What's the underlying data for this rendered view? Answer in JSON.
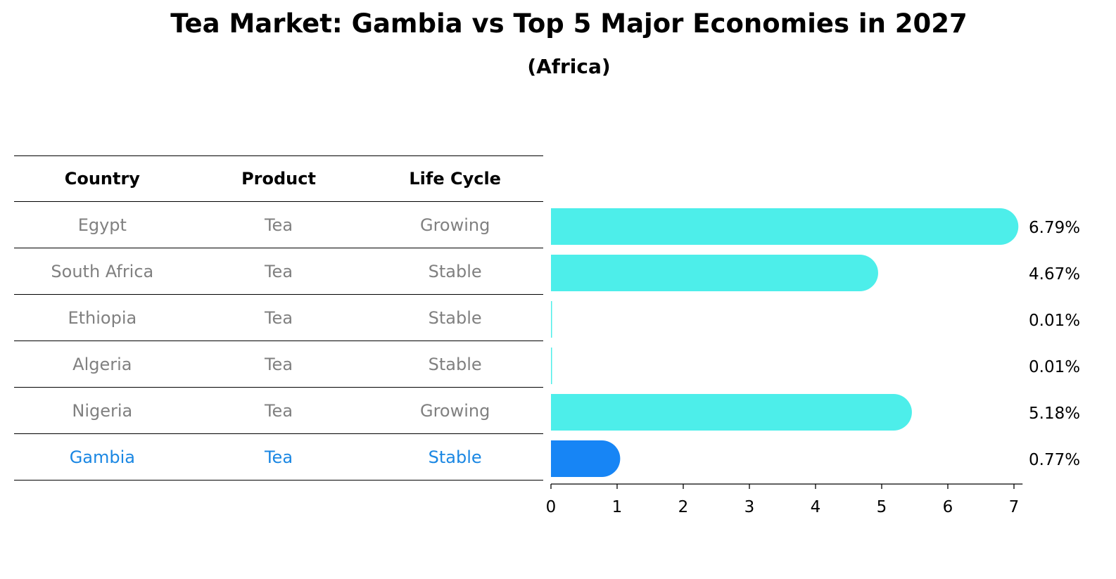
{
  "chart_data": {
    "type": "bar",
    "orientation": "horizontal",
    "title": "Tea Market: Gambia vs Top 5 Major Economies in 2027",
    "subtitle": "(Africa)",
    "table": {
      "columns": [
        "Country",
        "Product",
        "Life Cycle"
      ],
      "rows": [
        {
          "country": "Egypt",
          "product": "Tea",
          "life_cycle": "Growing"
        },
        {
          "country": "South Africa",
          "product": "Tea",
          "life_cycle": "Stable"
        },
        {
          "country": "Ethiopia",
          "product": "Tea",
          "life_cycle": "Stable"
        },
        {
          "country": "Algeria",
          "product": "Tea",
          "life_cycle": "Stable"
        },
        {
          "country": "Nigeria",
          "product": "Tea",
          "life_cycle": "Growing"
        },
        {
          "country": "Gambia",
          "product": "Tea",
          "life_cycle": "Stable",
          "highlight": true
        }
      ]
    },
    "categories": [
      "Egypt",
      "South Africa",
      "Ethiopia",
      "Algeria",
      "Nigeria",
      "Gambia"
    ],
    "values": [
      6.79,
      4.67,
      0.01,
      0.01,
      5.18,
      0.77
    ],
    "value_labels": [
      "6.79%",
      "4.67%",
      "0.01%",
      "0.01%",
      "5.18%",
      "0.77%"
    ],
    "xlim": [
      0,
      7
    ],
    "xticks": [
      0,
      1,
      2,
      3,
      4,
      5,
      6,
      7
    ],
    "colors": {
      "bar": "#4deeea",
      "highlight_bar": "#1785f5",
      "highlight_text": "#1a87e3",
      "muted_text": "#808080"
    },
    "grid": false
  }
}
